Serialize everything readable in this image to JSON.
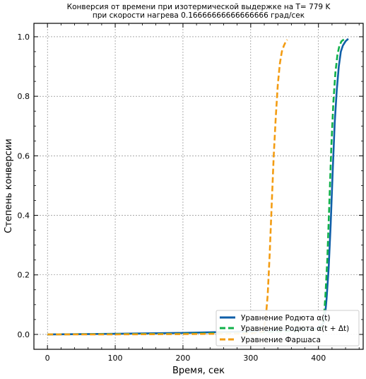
{
  "chart_data": {
    "type": "line",
    "title": [
      "Конверсия от времени при изотермической выдержке на T= 779 K",
      "при скорости нагрева 0.16666666666666666 град/сек"
    ],
    "xlabel": "Время, сек",
    "ylabel": "Степень конверсии",
    "xlim": [
      -20,
      466
    ],
    "ylim": [
      -0.05,
      1.045
    ],
    "xticks": [
      0,
      100,
      200,
      300,
      400
    ],
    "yticks": [
      0.0,
      0.2,
      0.4,
      0.6,
      0.8,
      1.0
    ],
    "xtick_labels": [
      "0",
      "100",
      "200",
      "300",
      "400"
    ],
    "ytick_labels": [
      "0.0",
      "0.2",
      "0.4",
      "0.6",
      "0.8",
      "1.0"
    ],
    "grid": true,
    "legend_position": "lower-right",
    "series": [
      {
        "name": "Уравнение Родюта α(t)",
        "color": "#0f5fa8",
        "dash": "solid",
        "x": [
          0,
          100,
          200,
          300,
          400,
          408,
          410,
          412,
          415,
          418,
          421,
          424,
          427,
          430,
          433,
          436,
          440,
          444
        ],
        "y": [
          0.0,
          0.002,
          0.005,
          0.01,
          0.02,
          0.04,
          0.07,
          0.12,
          0.22,
          0.37,
          0.55,
          0.71,
          0.82,
          0.9,
          0.95,
          0.97,
          0.985,
          0.993
        ]
      },
      {
        "name": "Уравнение Родюта α(t + Δt)",
        "color": "#10b04a",
        "dash": "dashed",
        "x": [
          0,
          100,
          200,
          300,
          400,
          406,
          408,
          410,
          413,
          416,
          419,
          422,
          425,
          428,
          431,
          434,
          437,
          441
        ],
        "y": [
          0.0,
          0.001,
          0.002,
          0.006,
          0.015,
          0.03,
          0.06,
          0.12,
          0.25,
          0.44,
          0.63,
          0.78,
          0.88,
          0.94,
          0.97,
          0.985,
          0.99,
          0.995
        ]
      },
      {
        "name": "Уравнение Фаршаса",
        "color": "#f39c12",
        "dash": "dashed",
        "x": [
          0,
          100,
          200,
          300,
          318,
          322,
          325,
          328,
          331,
          334,
          337,
          340,
          343,
          346,
          349,
          352,
          354
        ],
        "y": [
          0.0,
          0.0,
          0.001,
          0.003,
          0.01,
          0.05,
          0.13,
          0.27,
          0.44,
          0.6,
          0.73,
          0.84,
          0.91,
          0.95,
          0.97,
          0.985,
          0.99
        ]
      }
    ]
  }
}
